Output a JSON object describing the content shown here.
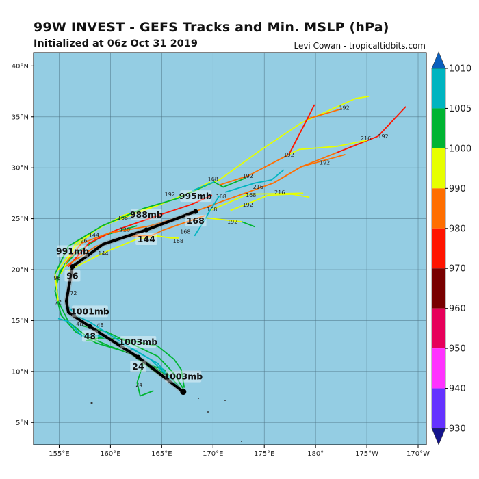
{
  "header": {
    "title": "99W INVEST - GEFS Tracks and Min. MSLP (hPa)",
    "subtitle": "Initialized at 06z Oct 31 2019",
    "credit": "Levi Cowan - tropicaltidbits.com"
  },
  "map": {
    "ocean_color": "#94cde3",
    "lon_range": [
      152.5,
      190.8
    ],
    "lat_range": [
      2.8,
      41.3
    ],
    "lon_ticks": [
      {
        "v": 155,
        "label": "155°E"
      },
      {
        "v": 160,
        "label": "160°E"
      },
      {
        "v": 165,
        "label": "165°E"
      },
      {
        "v": 170,
        "label": "170°E"
      },
      {
        "v": 175,
        "label": "175°E"
      },
      {
        "v": 180,
        "label": "180°"
      },
      {
        "v": 185,
        "label": "175°W"
      },
      {
        "v": 190,
        "label": "170°W"
      }
    ],
    "lat_ticks": [
      {
        "v": 5,
        "label": "5°N"
      },
      {
        "v": 10,
        "label": "10°N"
      },
      {
        "v": 15,
        "label": "15°N"
      },
      {
        "v": 20,
        "label": "20°N"
      },
      {
        "v": 25,
        "label": "25°N"
      },
      {
        "v": 30,
        "label": "30°N"
      },
      {
        "v": 35,
        "label": "35°N"
      },
      {
        "v": 40,
        "label": "40°N"
      }
    ],
    "grid": true
  },
  "colorbar": {
    "ticks": [
      "1010",
      "1005",
      "1000",
      "990",
      "980",
      "970",
      "960",
      "950",
      "940",
      "930"
    ],
    "top_extend_color": "#0a5fbe",
    "bottom_extend_color": "#14148c",
    "colors": [
      "#00b4c0",
      "#00b432",
      "#e6ff00",
      "#ff6e00",
      "#ff1400",
      "#780000",
      "#e6005a",
      "#ff32ff",
      "#6432ff"
    ]
  },
  "tracks": [
    {
      "color": "#00b432",
      "points": [
        [
          167.0,
          8.1
        ],
        [
          165.2,
          9.8
        ],
        [
          162.6,
          11.5
        ],
        [
          159.9,
          12.5
        ],
        [
          157.6,
          13.5
        ],
        [
          155.9,
          14.9
        ],
        [
          154.9,
          16.9
        ],
        [
          154.7,
          18.9
        ],
        [
          155.6,
          20.6
        ]
      ]
    },
    {
      "color": "#00b432",
      "points": [
        [
          166.7,
          8.3
        ],
        [
          164.6,
          9.8
        ],
        [
          161.9,
          11.8
        ],
        [
          158.6,
          12.8
        ],
        [
          156.6,
          13.9
        ],
        [
          155.2,
          15.5
        ],
        [
          154.6,
          17.9
        ],
        [
          155.1,
          19.9
        ],
        [
          156.6,
          21.6
        ],
        [
          159.2,
          23.3
        ],
        [
          162.6,
          24.3
        ]
      ]
    },
    {
      "color": "#00b432",
      "points": [
        [
          166.7,
          8.5
        ],
        [
          165.2,
          10.2
        ],
        [
          163.2,
          10.8
        ],
        [
          162.6,
          8.9
        ],
        [
          162.9,
          7.6
        ],
        [
          164.2,
          8.1
        ]
      ]
    },
    {
      "color": "#00b432",
      "points": [
        [
          167.1,
          8.3
        ],
        [
          166.2,
          9.8
        ],
        [
          164.6,
          11.5
        ],
        [
          161.9,
          12.8
        ],
        [
          159.6,
          13.9
        ],
        [
          157.2,
          14.5
        ]
      ]
    },
    {
      "color": "#00b432",
      "points": [
        [
          167.2,
          8.4
        ],
        [
          166.9,
          10.2
        ],
        [
          166.2,
          11.2
        ],
        [
          164.6,
          12.5
        ],
        [
          161.2,
          13.2
        ],
        [
          158.9,
          13.3
        ],
        [
          157.6,
          13.0
        ]
      ]
    },
    {
      "color": "#00b4c0",
      "points": [
        [
          166.9,
          8.1
        ],
        [
          164.6,
          10.8
        ],
        [
          161.6,
          12.5
        ],
        [
          158.9,
          13.5
        ],
        [
          157.2,
          13.5
        ],
        [
          155.9,
          14.9
        ],
        [
          154.9,
          15.2
        ]
      ]
    },
    {
      "color": "#00b4c0",
      "points": [
        [
          166.6,
          8.5
        ],
        [
          163.9,
          11.2
        ],
        [
          161.2,
          12.8
        ],
        [
          157.9,
          14.9
        ],
        [
          156.6,
          15.5
        ],
        [
          155.8,
          16.5
        ]
      ]
    },
    {
      "color": "#e6ff00",
      "points": [
        [
          154.9,
          16.9
        ],
        [
          154.6,
          19.6
        ],
        [
          156.6,
          22.3
        ],
        [
          158.6,
          23.9
        ],
        [
          161.2,
          25.3
        ],
        [
          164.6,
          26.3
        ],
        [
          167.9,
          27.6
        ],
        [
          170.6,
          28.8
        ],
        [
          174.6,
          31.7
        ],
        [
          178.6,
          34.4
        ],
        [
          183.9,
          36.8
        ],
        [
          185.2,
          37.0
        ]
      ]
    },
    {
      "color": "#e6ff00",
      "points": [
        [
          155.2,
          19.6
        ],
        [
          156.6,
          22.6
        ],
        [
          159.2,
          24.3
        ],
        [
          161.9,
          25.3
        ],
        [
          164.6,
          26.3
        ],
        [
          167.2,
          27.3
        ],
        [
          169.7,
          28.6
        ]
      ]
    },
    {
      "color": "#e6ff00",
      "points": [
        [
          155.9,
          19.9
        ],
        [
          159.2,
          21.6
        ],
        [
          162.6,
          23.0
        ],
        [
          164.6,
          23.3
        ],
        [
          165.9,
          23.1
        ],
        [
          166.7,
          23.1
        ]
      ]
    },
    {
      "color": "#ff1400",
      "points": [
        [
          155.9,
          20.3
        ],
        [
          157.9,
          22.6
        ],
        [
          160.6,
          23.9
        ],
        [
          164.6,
          25.3
        ],
        [
          167.9,
          26.4
        ],
        [
          169.9,
          27.3
        ]
      ]
    },
    {
      "color": "#ff6e00",
      "points": [
        [
          155.6,
          20.6
        ],
        [
          157.2,
          22.6
        ],
        [
          159.9,
          23.6
        ],
        [
          163.9,
          24.3
        ],
        [
          167.2,
          25.3
        ],
        [
          170.6,
          26.6
        ],
        [
          175.9,
          28.5
        ],
        [
          178.6,
          30.1
        ],
        [
          182.1,
          31.5
        ]
      ]
    },
    {
      "color": "#ff6e00",
      "points": [
        [
          155.6,
          20.3
        ],
        [
          158.6,
          22.3
        ],
        [
          161.9,
          23.3
        ],
        [
          163.9,
          23.3
        ],
        [
          165.2,
          23.9
        ],
        [
          169.2,
          25.3
        ]
      ]
    },
    {
      "color": "#00b432",
      "points": [
        [
          154.6,
          19.6
        ],
        [
          155.9,
          22.3
        ],
        [
          159.2,
          24.3
        ],
        [
          163.2,
          26.0
        ],
        [
          166.6,
          27.0
        ],
        [
          167.2,
          27.3
        ],
        [
          170.1,
          28.6
        ],
        [
          171.0,
          28.1
        ],
        [
          173.2,
          29.0
        ]
      ]
    },
    {
      "color": "#00b4c0",
      "points": [
        [
          167.9,
          27.6
        ],
        [
          168.1,
          27.8
        ],
        [
          170.1,
          28.6
        ]
      ]
    },
    {
      "color": "#ff6e00",
      "points": [
        [
          170.6,
          28.3
        ],
        [
          173.4,
          29.2
        ],
        [
          177.4,
          31.3
        ],
        [
          179.2,
          34.8
        ],
        [
          182.6,
          35.8
        ]
      ]
    },
    {
      "color": "#ff1400",
      "points": [
        [
          177.4,
          31.3
        ],
        [
          179.9,
          36.2
        ]
      ]
    },
    {
      "color": "#ff1400",
      "points": [
        [
          182.1,
          31.5
        ],
        [
          186.1,
          33.1
        ],
        [
          188.8,
          36.0
        ]
      ]
    },
    {
      "color": "#e6ff00",
      "points": [
        [
          177.4,
          31.3
        ],
        [
          178.4,
          31.8
        ],
        [
          182.1,
          32.1
        ],
        [
          185.0,
          32.7
        ]
      ]
    },
    {
      "color": "#ff6e00",
      "points": [
        [
          175.9,
          28.5
        ],
        [
          178.6,
          30.1
        ],
        [
          182.9,
          31.3
        ]
      ]
    },
    {
      "color": "#00b4c0",
      "points": [
        [
          171.2,
          27.6
        ],
        [
          174.1,
          28.5
        ],
        [
          175.7,
          28.8
        ],
        [
          176.9,
          29.8
        ]
      ]
    },
    {
      "color": "#e6ff00",
      "points": [
        [
          169.7,
          25.8
        ],
        [
          173.4,
          27.4
        ],
        [
          178.8,
          27.5
        ]
      ]
    },
    {
      "color": "#e6ff00",
      "points": [
        [
          171.7,
          25.8
        ],
        [
          175.4,
          27.3
        ],
        [
          177.7,
          27.4
        ],
        [
          179.4,
          27.1
        ]
      ]
    },
    {
      "color": "#e6ff00",
      "points": [
        [
          169.2,
          25.1
        ],
        [
          171.0,
          24.9
        ],
        [
          172.8,
          24.7
        ]
      ]
    },
    {
      "color": "#00b432",
      "points": [
        [
          172.8,
          24.7
        ],
        [
          174.1,
          24.2
        ]
      ]
    },
    {
      "color": "#00b4c0",
      "points": [
        [
          170.6,
          27.2
        ],
        [
          169.7,
          25.8
        ],
        [
          169.2,
          24.9
        ],
        [
          168.2,
          23.3
        ]
      ]
    }
  ],
  "mean_track": {
    "color": "#000000",
    "points": [
      [
        167.1,
        8.0
      ],
      [
        162.7,
        11.4
      ],
      [
        158.0,
        14.4
      ],
      [
        155.9,
        15.8
      ],
      [
        155.7,
        16.9
      ],
      [
        156.3,
        20.3
      ],
      [
        159.3,
        22.5
      ],
      [
        163.5,
        23.9
      ],
      [
        168.3,
        25.7
      ]
    ],
    "labels": [
      {
        "lon": 167.1,
        "lat": 8.0,
        "mb": "1003mb",
        "hour": ""
      },
      {
        "lon": 162.7,
        "lat": 11.4,
        "mb": "1003mb",
        "hour": "24"
      },
      {
        "lon": 158.0,
        "lat": 14.4,
        "mb": "1001mb",
        "hour": "48"
      },
      {
        "lon": 156.3,
        "lat": 20.3,
        "mb": "991mb",
        "hour": "96"
      },
      {
        "lon": 163.5,
        "lat": 23.9,
        "mb": "988mb",
        "hour": "144"
      },
      {
        "lon": 168.3,
        "lat": 25.7,
        "mb": "995mb",
        "hour": "168"
      }
    ]
  },
  "hour_labels": [
    {
      "lon": 182.8,
      "lat": 35.9,
      "text": "192"
    },
    {
      "lon": 177.4,
      "lat": 31.3,
      "text": "192"
    },
    {
      "lon": 184.9,
      "lat": 32.9,
      "text": "216"
    },
    {
      "lon": 186.0,
      "lat": 33.1,
      "text": "192"
    },
    {
      "lon": 180.9,
      "lat": 30.5,
      "text": "192"
    },
    {
      "lon": 170.0,
      "lat": 28.9,
      "text": "168"
    },
    {
      "lon": 173.4,
      "lat": 29.2,
      "text": "192"
    },
    {
      "lon": 174.4,
      "lat": 28.6,
      "text": "216"
    },
    {
      "lon": 173.7,
      "lat": 27.8,
      "text": "168"
    },
    {
      "lon": 176.5,
      "lat": 27.6,
      "text": "216"
    },
    {
      "lon": 170.8,
      "lat": 27.2,
      "text": "168"
    },
    {
      "lon": 173.4,
      "lat": 26.4,
      "text": "192"
    },
    {
      "lon": 169.9,
      "lat": 25.9,
      "text": "168"
    },
    {
      "lon": 171.9,
      "lat": 24.7,
      "text": "192"
    },
    {
      "lon": 166.4,
      "lat": 27.4,
      "text": "192"
    },
    {
      "lon": 167.3,
      "lat": 24.2,
      "text": "168"
    },
    {
      "lon": 166.6,
      "lat": 23.3,
      "text": "168"
    },
    {
      "lon": 161.2,
      "lat": 25.1,
      "text": "168"
    },
    {
      "lon": 158.4,
      "lat": 23.4,
      "text": "144"
    },
    {
      "lon": 159.3,
      "lat": 21.6,
      "text": "144"
    },
    {
      "lon": 161.4,
      "lat": 24.4,
      "text": "120"
    },
    {
      "lon": 157.4,
      "lat": 22.4,
      "text": "96"
    },
    {
      "lon": 154.8,
      "lat": 19.2,
      "text": "96"
    },
    {
      "lon": 156.4,
      "lat": 17.7,
      "text": "72"
    },
    {
      "lon": 154.9,
      "lat": 16.8,
      "text": "72"
    },
    {
      "lon": 159.0,
      "lat": 14.1,
      "text": "48"
    },
    {
      "lon": 157.0,
      "lat": 14.2,
      "text": "48"
    },
    {
      "lon": 161.8,
      "lat": 12.8,
      "text": "24"
    },
    {
      "lon": 162.8,
      "lat": 8.7,
      "text": "24"
    }
  ]
}
